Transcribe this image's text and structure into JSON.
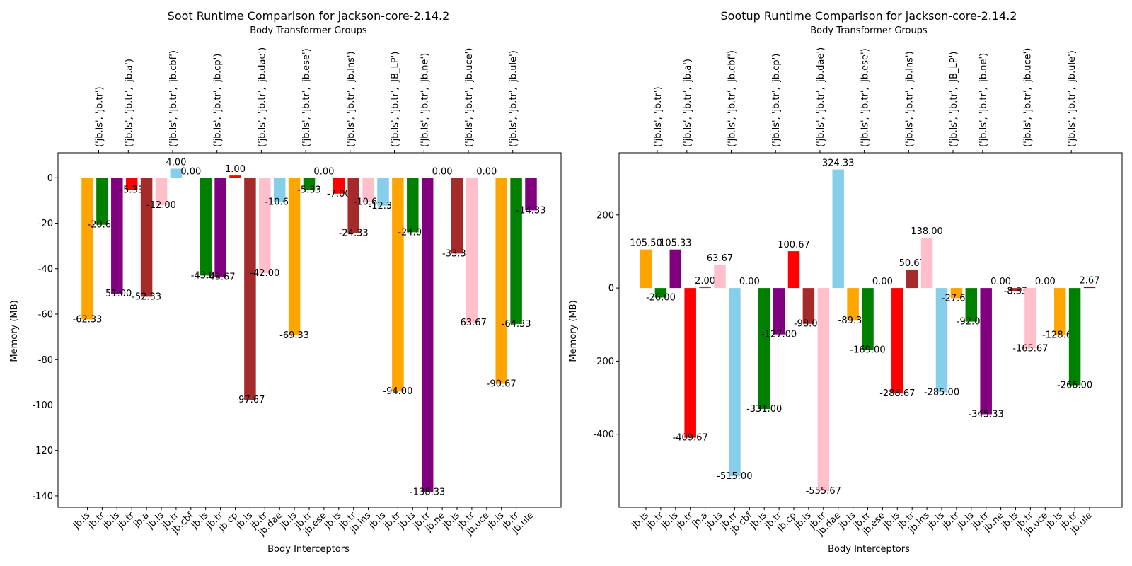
{
  "chart_data": [
    {
      "type": "bar",
      "title": "Soot Runtime Comparison for jackson-core-2.14.2",
      "top_xlabel": "Body Transformer Groups",
      "xlabel": "Body Interceptors",
      "ylabel": "Memory (MB)",
      "ylim": [
        -145,
        11
      ],
      "yticks": [
        0,
        -20,
        -40,
        -60,
        -80,
        -100,
        -120,
        -140
      ],
      "groups": [
        "('jb.ls', 'jb.tr')",
        "('jb.ls', 'jb.tr', 'jb.a')",
        "('jb.ls', 'jb.tr', 'jb.cbf')",
        "('jb.ls', 'jb.tr', 'jb.cp')",
        "('jb.ls', 'jb.tr', 'jb.dae')",
        "('jb.ls', 'jb.tr', 'jb.ese')",
        "('jb.ls', 'jb.tr', 'jb.lns')",
        "('jb.ls', 'jb.tr', 'JB_LP')",
        "('jb.ls', 'jb.tr', 'jb.ne')",
        "('jb.ls', 'jb.tr', 'jb.uce')",
        "('jb.ls', 'jb.tr', 'jb.ule')"
      ],
      "group_starts": [
        0,
        2,
        5,
        8,
        11,
        14,
        17,
        20,
        22,
        25,
        28
      ],
      "categories": [
        "jb.ls",
        "jb.tr",
        "jb.ls",
        "jb.tr",
        "jb.a",
        "jb.ls",
        "jb.tr",
        "jb.cbf",
        "jb.ls",
        "jb.tr",
        "jb.cp",
        "jb.ls",
        "jb.tr",
        "jb.dae",
        "jb.ls",
        "jb.tr",
        "jb.ese",
        "jb.ls",
        "jb.tr",
        "jb.lns",
        "jb.ls",
        "jb.tr",
        "jb.ls",
        "jb.tr",
        "jb.ne",
        "jb.ls",
        "jb.tr",
        "jb.uce",
        "jb.ls",
        "jb.tr",
        "jb.ule"
      ],
      "values": [
        -62.33,
        -20.67,
        -51.0,
        -5.33,
        -52.33,
        -12.0,
        4.0,
        0.0,
        -43.0,
        -43.67,
        1.0,
        -97.67,
        -42.0,
        -10.67,
        -69.33,
        -5.33,
        0.0,
        -7.0,
        -24.33,
        -10.67,
        -12.33,
        -94.0,
        -24.0,
        -138.33,
        0.0,
        -33.33,
        -63.67,
        0.0,
        -90.67,
        -64.33,
        -14.33
      ],
      "value_labels": [
        "-62.33",
        "-20.67",
        "-51.00",
        "-5.33",
        "-52.33",
        "-12.00",
        "4.00",
        "0.00",
        "-43.00",
        "-43.67",
        "1.00",
        "-97.67",
        "-42.00",
        "-10.67",
        "-69.33",
        "-5.33",
        "0.00",
        "-7.00",
        "-24.33",
        "-10.67",
        "-12.33",
        "-94.00",
        "-24.00",
        "-138.33",
        "0.00",
        "-33.33",
        "-63.67",
        "0.00",
        "-90.67",
        "-64.33",
        "-14.33"
      ],
      "colors": [
        "#FFA500",
        "#008000",
        "#800080",
        "#FF0000",
        "#A52A2A",
        "#FFC0CB",
        "#87CEEB",
        "#87CEEB",
        "#008000",
        "#800080",
        "#FF0000",
        "#A52A2A",
        "#FFC0CB",
        "#87CEEB",
        "#FFA500",
        "#008000",
        "#008000",
        "#FF0000",
        "#A52A2A",
        "#FFC0CB",
        "#87CEEB",
        "#FFA500",
        "#008000",
        "#800080",
        "#800080",
        "#A52A2A",
        "#FFC0CB",
        "#FFC0CB",
        "#FFA500",
        "#008000",
        "#800080"
      ]
    },
    {
      "type": "bar",
      "title": "Sootup Runtime Comparison for jackson-core-2.14.2",
      "top_xlabel": "Body Transformer Groups",
      "xlabel": "Body Interceptors",
      "ylabel": "Memory (MB)",
      "ylim": [
        -600,
        370
      ],
      "yticks": [
        200,
        0,
        -200,
        -400
      ],
      "groups": [
        "('jb.ls', 'jb.tr')",
        "('jb.ls', 'jb.tr', 'jb.a')",
        "('jb.ls', 'jb.tr', 'jb.cbf')",
        "('jb.ls', 'jb.tr', 'jb.cp')",
        "('jb.ls', 'jb.tr', 'jb.dae')",
        "('jb.ls', 'jb.tr', 'jb.ese')",
        "('jb.ls', 'jb.tr', 'jb.lns')",
        "('jb.ls', 'jb.tr', 'JB_LP')",
        "('jb.ls', 'jb.tr', 'jb.ne')",
        "('jb.ls', 'jb.tr', 'jb.uce')",
        "('jb.ls', 'jb.tr', 'jb.ule')"
      ],
      "group_starts": [
        0,
        2,
        5,
        8,
        11,
        14,
        17,
        20,
        22,
        25,
        28
      ],
      "categories": [
        "jb.ls",
        "jb.tr",
        "jb.ls",
        "jb.tr",
        "jb.a",
        "jb.ls",
        "jb.tr",
        "jb.cbf",
        "jb.ls",
        "jb.tr",
        "jb.cp",
        "jb.ls",
        "jb.tr",
        "jb.dae",
        "jb.ls",
        "jb.tr",
        "jb.ese",
        "jb.ls",
        "jb.tr",
        "jb.lns",
        "jb.ls",
        "jb.tr",
        "jb.ls",
        "jb.tr",
        "jb.ne",
        "jb.ls",
        "jb.tr",
        "jb.uce",
        "jb.ls",
        "jb.tr",
        "jb.ule"
      ],
      "values": [
        105.5,
        -26.0,
        105.33,
        -409.67,
        2.0,
        63.67,
        -515.0,
        0.0,
        -331.0,
        -127.0,
        100.67,
        -98.0,
        -555.67,
        324.33,
        -89.33,
        -169.0,
        0.0,
        -288.67,
        50.67,
        138.0,
        -285.0,
        -27.67,
        -92.0,
        -345.33,
        0.0,
        -8.33,
        -165.67,
        0.0,
        -128.67,
        -266.0,
        2.67
      ],
      "value_labels": [
        "105.50",
        "-26.00",
        "105.33",
        "-409.67",
        "2.00",
        "63.67",
        "-515.00",
        "0.00",
        "-331.00",
        "-127.00",
        "100.67",
        "-98.00",
        "-555.67",
        "324.33",
        "-89.33",
        "-169.00",
        "0.00",
        "-288.67",
        "50.67",
        "138.00",
        "-285.00",
        "-27.67",
        "-92.00",
        "-345.33",
        "0.00",
        "-8.33",
        "-165.67",
        "0.00",
        "-128.67",
        "-266.00",
        "2.67"
      ],
      "colors": [
        "#FFA500",
        "#008000",
        "#800080",
        "#FF0000",
        "#A52A2A",
        "#FFC0CB",
        "#87CEEB",
        "#87CEEB",
        "#008000",
        "#800080",
        "#FF0000",
        "#A52A2A",
        "#FFC0CB",
        "#87CEEB",
        "#FFA500",
        "#008000",
        "#008000",
        "#FF0000",
        "#A52A2A",
        "#FFC0CB",
        "#87CEEB",
        "#FFA500",
        "#008000",
        "#800080",
        "#800080",
        "#A52A2A",
        "#FFC0CB",
        "#FFC0CB",
        "#FFA500",
        "#008000",
        "#800080"
      ]
    }
  ]
}
